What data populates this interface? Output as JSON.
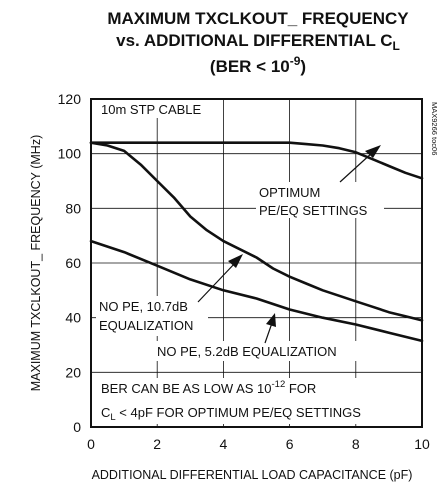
{
  "chart_data": {
    "type": "line",
    "title": {
      "line1": "MAXIMUM TXCLKOUT_ FREQUENCY",
      "line2_prefix": "vs. ADDITIONAL DIFFERENTIAL C",
      "line2_sub": "L",
      "line3_prefix": "(BER < 10",
      "line3_sup": "-9",
      "line3_suffix": ")"
    },
    "xlabel": "ADDITIONAL DIFFERENTIAL LOAD CAPACITANCE (pF)",
    "ylabel": "MAXIMUM TXCLKOUT_ FREQUENCY (MHz)",
    "xlim": [
      0,
      10
    ],
    "ylim": [
      0,
      120
    ],
    "xticks": [
      0,
      2,
      4,
      6,
      8,
      10
    ],
    "yticks": [
      0,
      20,
      40,
      60,
      80,
      100,
      120
    ],
    "grid": true,
    "watermark": "MAX9266 toc06",
    "series": [
      {
        "name": "OPTIMUM PE/EQ SETTINGS",
        "x": [
          0,
          1,
          2,
          3,
          4,
          5,
          6,
          6.5,
          7,
          7.5,
          8,
          8.5,
          9,
          9.5,
          10
        ],
        "y": [
          104,
          104,
          104,
          104,
          104,
          104,
          104,
          103.5,
          103,
          102,
          100.5,
          98,
          95.5,
          93,
          91
        ]
      },
      {
        "name": "NO PE, 10.7dB EQUALIZATION",
        "x": [
          0,
          0.5,
          1,
          1.5,
          2,
          2.5,
          3,
          3.5,
          4,
          4.5,
          5,
          5.5,
          6,
          6.5,
          7,
          7.5,
          8,
          8.5,
          9,
          9.5,
          10
        ],
        "y": [
          104,
          103,
          101,
          96,
          90,
          84,
          77,
          72,
          68,
          65,
          62,
          58,
          55,
          52.5,
          50,
          48,
          46,
          44,
          42,
          40.5,
          39
        ]
      },
      {
        "name": "NO PE, 5.2dB EQUALIZATION",
        "x": [
          0,
          1,
          2,
          3,
          4,
          5,
          6,
          7,
          8,
          9,
          10
        ],
        "y": [
          68,
          64,
          59,
          54,
          50,
          47,
          43,
          40,
          37.5,
          34.5,
          31.5
        ]
      }
    ],
    "annotations": {
      "cable": "10m STP CABLE",
      "opt_line1": "OPTIMUM",
      "opt_line2": "PE/EQ SETTINGS",
      "eq107_line1": "NO PE, 10.7dB",
      "eq107_line2": "EQUALIZATION",
      "eq52": "NO PE, 5.2dB EQUALIZATION",
      "ber1_prefix": "BER CAN BE AS LOW AS 10",
      "ber1_sup": "-12",
      "ber1_suffix": " FOR",
      "ber2_main": "C",
      "ber2_sub": "L",
      "ber2_suffix": " < 4pF FOR OPTIMUM PE/EQ SETTINGS"
    }
  }
}
